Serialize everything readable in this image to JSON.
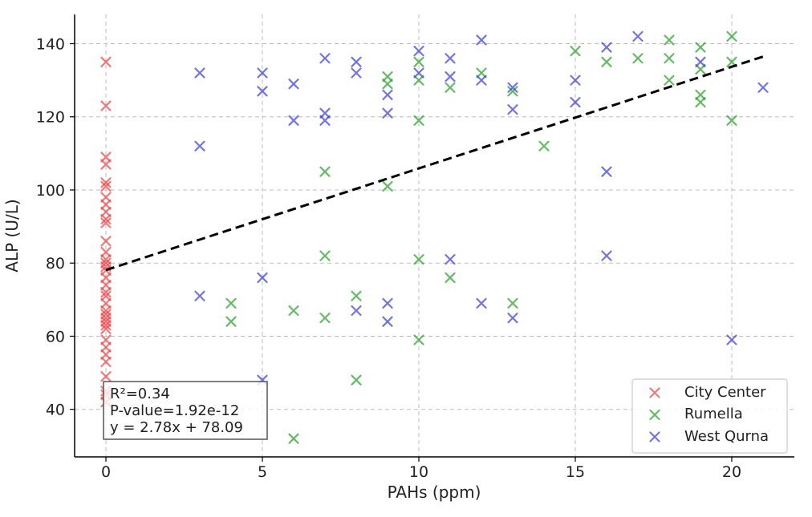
{
  "chart_data": {
    "type": "scatter",
    "xlabel": "PAHs (ppm)",
    "ylabel": "ALP (U/L)",
    "xlim": [
      -1,
      22
    ],
    "ylim": [
      27,
      148
    ],
    "xticks": [
      "0",
      "5",
      "10",
      "15",
      "20"
    ],
    "yticks": [
      "40",
      "60",
      "80",
      "100",
      "120",
      "140"
    ],
    "grid": true,
    "legend_position": "lower-right",
    "marker": "x",
    "series": [
      {
        "name": "City Center",
        "color": "#e8474a",
        "points": [
          [
            0,
            135
          ],
          [
            0,
            123
          ],
          [
            0,
            109
          ],
          [
            0,
            107
          ],
          [
            0,
            102
          ],
          [
            0,
            101
          ],
          [
            0,
            98
          ],
          [
            0,
            96
          ],
          [
            0,
            94
          ],
          [
            0,
            92
          ],
          [
            0,
            91
          ],
          [
            0,
            86
          ],
          [
            0,
            83
          ],
          [
            0,
            81
          ],
          [
            0,
            80
          ],
          [
            0,
            79
          ],
          [
            0,
            78
          ],
          [
            0,
            76
          ],
          [
            0,
            74
          ],
          [
            0,
            72
          ],
          [
            0,
            71
          ],
          [
            0,
            69
          ],
          [
            0,
            67
          ],
          [
            0,
            66
          ],
          [
            0,
            65
          ],
          [
            0,
            64
          ],
          [
            0,
            63
          ],
          [
            0,
            62
          ],
          [
            0,
            59
          ],
          [
            0,
            57
          ],
          [
            0,
            55
          ],
          [
            0,
            53
          ],
          [
            0,
            49
          ],
          [
            0,
            45
          ],
          [
            0,
            44
          ],
          [
            0,
            42
          ]
        ]
      },
      {
        "name": "Rumella",
        "color": "#2ca02c",
        "points": [
          [
            4,
            69
          ],
          [
            4,
            64
          ],
          [
            6,
            67
          ],
          [
            6,
            32
          ],
          [
            7,
            105
          ],
          [
            7,
            82
          ],
          [
            7,
            65
          ],
          [
            8,
            71
          ],
          [
            8,
            48
          ],
          [
            9,
            131
          ],
          [
            9,
            129
          ],
          [
            9,
            101
          ],
          [
            10,
            135
          ],
          [
            10,
            130
          ],
          [
            10,
            119
          ],
          [
            10,
            81
          ],
          [
            10,
            59
          ],
          [
            11,
            128
          ],
          [
            11,
            76
          ],
          [
            12,
            132
          ],
          [
            13,
            127
          ],
          [
            13,
            69
          ],
          [
            14,
            112
          ],
          [
            15,
            138
          ],
          [
            16,
            135
          ],
          [
            17,
            136
          ],
          [
            18,
            141
          ],
          [
            18,
            136
          ],
          [
            18,
            130
          ],
          [
            19,
            139
          ],
          [
            19,
            133
          ],
          [
            19,
            126
          ],
          [
            19,
            124
          ],
          [
            20,
            142
          ],
          [
            20,
            135
          ],
          [
            20,
            119
          ]
        ]
      },
      {
        "name": "West Qurna",
        "color": "#3f3fd6",
        "points": [
          [
            3,
            132
          ],
          [
            3,
            112
          ],
          [
            3,
            71
          ],
          [
            5,
            132
          ],
          [
            5,
            127
          ],
          [
            5,
            76
          ],
          [
            5,
            48
          ],
          [
            6,
            129
          ],
          [
            6,
            119
          ],
          [
            7,
            136
          ],
          [
            7,
            121
          ],
          [
            7,
            119
          ],
          [
            8,
            135
          ],
          [
            8,
            132
          ],
          [
            8,
            67
          ],
          [
            9,
            126
          ],
          [
            9,
            121
          ],
          [
            9,
            69
          ],
          [
            9,
            64
          ],
          [
            10,
            138
          ],
          [
            10,
            132
          ],
          [
            11,
            136
          ],
          [
            11,
            131
          ],
          [
            11,
            81
          ],
          [
            12,
            141
          ],
          [
            12,
            130
          ],
          [
            12,
            69
          ],
          [
            13,
            128
          ],
          [
            13,
            122
          ],
          [
            13,
            65
          ],
          [
            15,
            130
          ],
          [
            15,
            124
          ],
          [
            16,
            139
          ],
          [
            16,
            105
          ],
          [
            16,
            82
          ],
          [
            17,
            142
          ],
          [
            19,
            135
          ],
          [
            20,
            59
          ],
          [
            21,
            128
          ]
        ]
      }
    ],
    "regression": {
      "slope": 2.78,
      "intercept": 78.09,
      "x_range": [
        0,
        21
      ],
      "style": "dashed",
      "color": "#000000"
    },
    "annotation": [
      "R²=0.34",
      "P-value=1.92e-12",
      "y = 2.78x + 78.09"
    ]
  }
}
